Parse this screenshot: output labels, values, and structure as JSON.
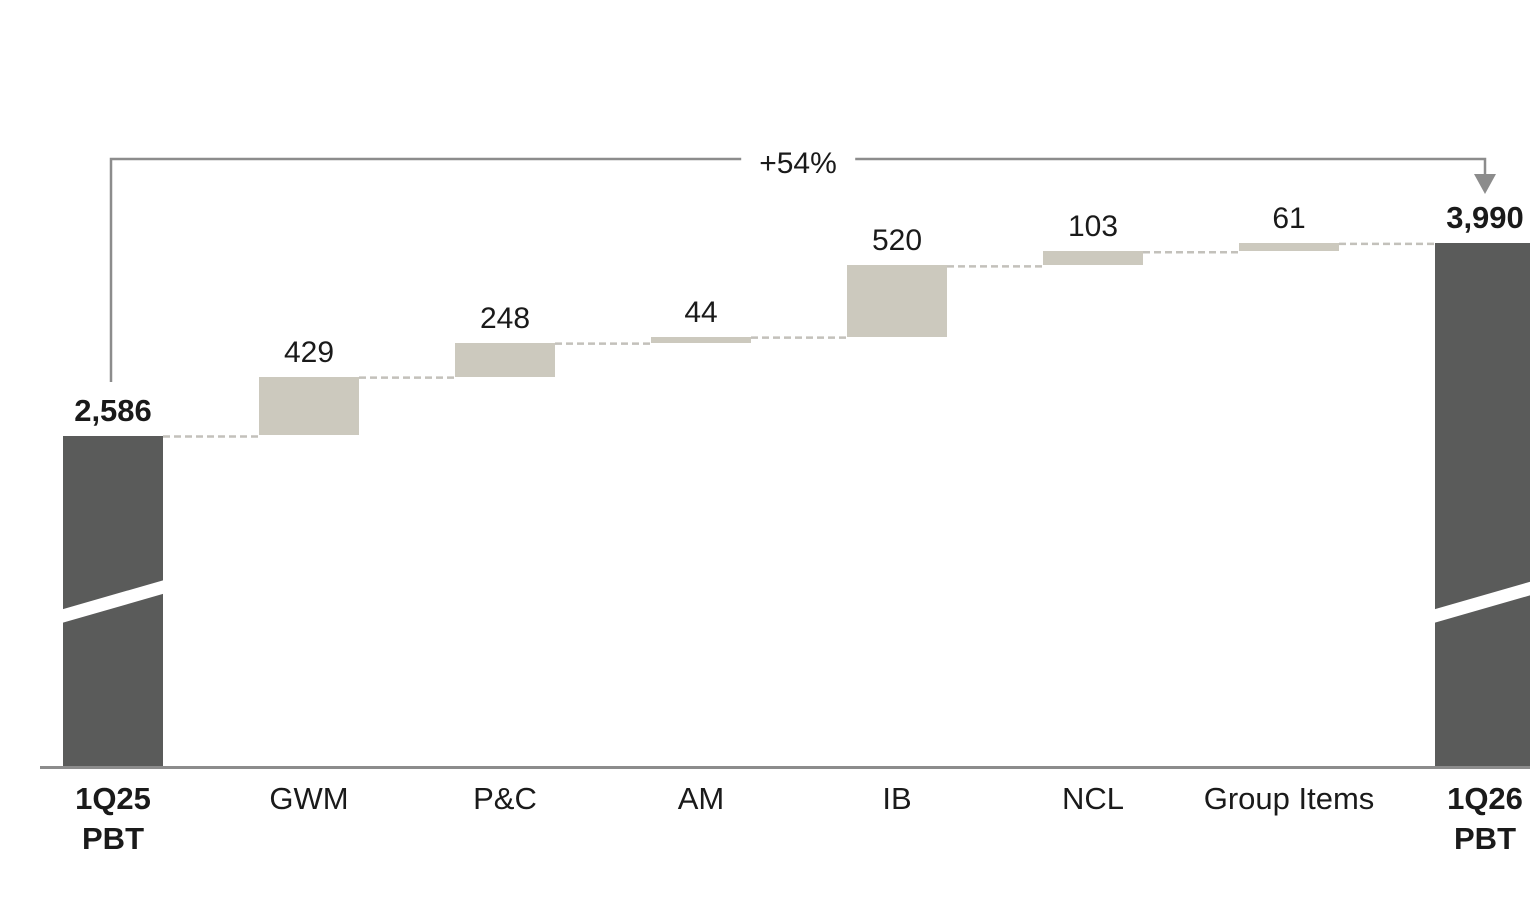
{
  "chart_data": {
    "type": "waterfall",
    "title": "",
    "arrow_label": "+54%",
    "start_value": 2586,
    "end_value": 3990,
    "axis_break_on_total_bars": true,
    "legend": "none",
    "bars": [
      {
        "category_lines": [
          "1Q25",
          "PBT"
        ],
        "display_value": "2,586",
        "value": 2586,
        "kind": "total"
      },
      {
        "category_lines": [
          "GWM"
        ],
        "display_value": "429",
        "value": 429,
        "kind": "increase"
      },
      {
        "category_lines": [
          "P&C"
        ],
        "display_value": "248",
        "value": 248,
        "kind": "increase"
      },
      {
        "category_lines": [
          "AM"
        ],
        "display_value": "44",
        "value": 44,
        "kind": "increase"
      },
      {
        "category_lines": [
          "IB"
        ],
        "display_value": "520",
        "value": 520,
        "kind": "increase"
      },
      {
        "category_lines": [
          "NCL"
        ],
        "display_value": "103",
        "value": 103,
        "kind": "increase"
      },
      {
        "category_lines": [
          "Group Items"
        ],
        "display_value": "61",
        "value": 61,
        "kind": "increase"
      },
      {
        "category_lines": [
          "1Q26",
          "PBT"
        ],
        "display_value": "3,990",
        "value": 3990,
        "kind": "total"
      }
    ],
    "colors": {
      "total_bar": "#5a5b5a",
      "delta_bar": "#ccc9be",
      "connector": "#c3c1bb",
      "arrow": "#8c8c8c",
      "axis": "#8c8c8c",
      "text": "#1a1a1a"
    }
  }
}
